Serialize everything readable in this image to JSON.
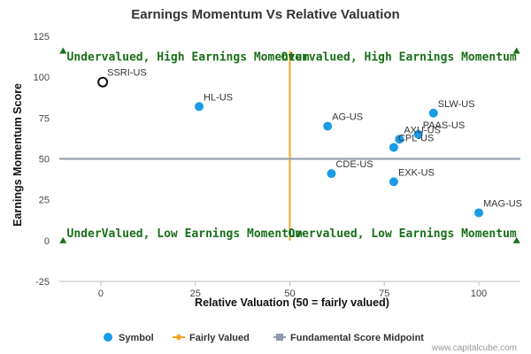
{
  "chart_data": {
    "type": "scatter",
    "title": "Earnings Momentum Vs Relative Valuation",
    "xlabel": "Relative Valuation (50 = fairly valued)",
    "ylabel": "Earnings Momentum Score",
    "xlim": [
      -11,
      111
    ],
    "ylim": [
      -25,
      125
    ],
    "xticks": [
      0,
      25,
      50,
      75,
      100
    ],
    "yticks": [
      -25,
      0,
      25,
      50,
      75,
      100,
      125
    ],
    "grid": false,
    "legend_position": "bottom",
    "points": [
      {
        "label": "SSRI-US",
        "x": 0.5,
        "y": 97,
        "highlight": true
      },
      {
        "label": "HL-US",
        "x": 26,
        "y": 82
      },
      {
        "label": "AG-US",
        "x": 60,
        "y": 70
      },
      {
        "label": "SLW-US",
        "x": 88,
        "y": 78
      },
      {
        "label": "PAAS-US",
        "x": 84,
        "y": 65
      },
      {
        "label": "AXU-US",
        "x": 79,
        "y": 62
      },
      {
        "label": "CPL-US",
        "x": 77.5,
        "y": 57
      },
      {
        "label": "CDE-US",
        "x": 61,
        "y": 41
      },
      {
        "label": "EXK-US",
        "x": 77.5,
        "y": 36
      },
      {
        "label": "MAG-US",
        "x": 100,
        "y": 17
      }
    ],
    "fairly_valued_x": 50,
    "score_midpoint_y": 50,
    "quadrant_labels": {
      "top_left": "Undervalued, High Earnings Momentum",
      "top_right": "Overvalued, High Earnings Momentum",
      "bottom_left": "UnderValued, Low Earnings Momentum",
      "bottom_right": "Overvalued, Low Earnings Momentum"
    },
    "legend": [
      {
        "name": "Symbol",
        "color": "#1a9be6"
      },
      {
        "name": "Fairly Valued",
        "color": "#f5a623"
      },
      {
        "name": "Fundamental Score Midpoint",
        "color": "#8e9aaa"
      }
    ],
    "credit": "www.capitalcube.com"
  },
  "colors": {
    "point": "#1a9be6",
    "highlight_stroke": "#111111",
    "fairly_valued": "#f5a623",
    "midpoint": "#8e9aaa",
    "quadrant_text": "#1a6f1a",
    "marker": "#1a6f1a",
    "axis": "#c0c0c0"
  }
}
